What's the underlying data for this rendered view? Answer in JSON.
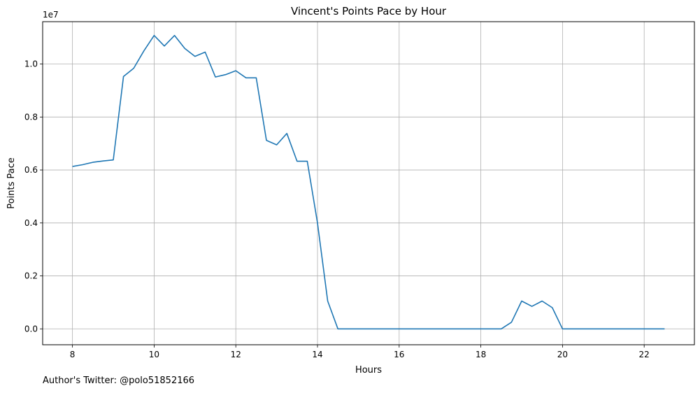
{
  "chart_data": {
    "type": "line",
    "title": "Vincent's Points Pace by Hour",
    "xlabel": "Hours",
    "ylabel": "Points Pace",
    "y_scale_label": "1e7",
    "xlim": [
      7.27,
      23.23
    ],
    "ylim": [
      -0.06,
      1.16
    ],
    "x_ticks": [
      8,
      10,
      12,
      14,
      16,
      18,
      20,
      22
    ],
    "y_ticks": [
      0.0,
      0.2,
      0.4,
      0.6,
      0.8,
      1.0
    ],
    "x_tick_labels": [
      "8",
      "10",
      "12",
      "14",
      "16",
      "18",
      "20",
      "22"
    ],
    "y_tick_labels": [
      "0.0",
      "0.2",
      "0.4",
      "0.6",
      "0.8",
      "1.0"
    ],
    "grid": true,
    "line_color": "#1f77b4",
    "series": [
      {
        "x": [
          8.0,
          8.25,
          8.5,
          8.75,
          9.0,
          9.25,
          9.5,
          9.75,
          10.0,
          10.25,
          10.5,
          10.75,
          11.0,
          11.25,
          11.5,
          11.75,
          12.0,
          12.25,
          12.5,
          12.75,
          13.0,
          13.25,
          13.5,
          13.75,
          14.0,
          14.25,
          14.5,
          14.75,
          15.0,
          15.25,
          15.5,
          15.75,
          16.0,
          16.25,
          16.5,
          16.75,
          17.0,
          17.25,
          17.5,
          17.75,
          18.0,
          18.25,
          18.5,
          18.75,
          19.0,
          19.25,
          19.5,
          19.75,
          20.0,
          20.25,
          20.5,
          20.75,
          21.0,
          21.25,
          21.5,
          21.75,
          22.0,
          22.25,
          22.5
        ],
        "values": [
          0.613,
          0.62,
          0.629,
          0.634,
          0.638,
          0.953,
          0.984,
          1.05,
          1.108,
          1.068,
          1.108,
          1.059,
          1.029,
          1.045,
          0.951,
          0.96,
          0.975,
          0.948,
          0.948,
          0.712,
          0.695,
          0.738,
          0.633,
          0.633,
          0.4,
          0.105,
          0.0,
          0.0,
          0.0,
          0.0,
          0.0,
          0.0,
          0.0,
          0.0,
          0.0,
          0.0,
          0.0,
          0.0,
          0.0,
          0.0,
          0.0,
          0.0,
          0.0,
          0.025,
          0.105,
          0.085,
          0.105,
          0.08,
          0.0,
          0.0,
          0.0,
          0.0,
          0.0,
          0.0,
          0.0,
          0.0,
          0.0,
          0.0,
          0.0
        ]
      }
    ]
  },
  "footer": {
    "author_note": "Author's Twitter: @polo51852166"
  }
}
